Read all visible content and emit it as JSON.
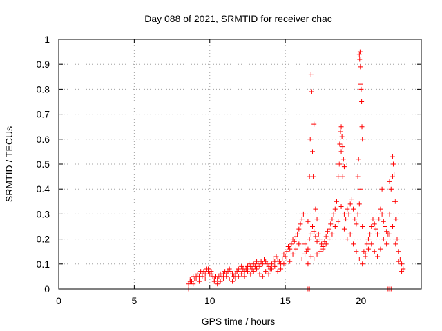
{
  "chart_data": {
    "type": "scatter",
    "title": "Day 088 of 2021, SRMTID for receiver chac",
    "xlabel": "GPS time / hours",
    "ylabel": "SRMTID / TECUs",
    "xlim": [
      0,
      24
    ],
    "ylim": [
      0,
      1
    ],
    "xticks": [
      0,
      5,
      10,
      15,
      20
    ],
    "xtick_labels": [
      "0",
      "5",
      "10",
      "15",
      "20"
    ],
    "yticks": [
      0,
      0.1,
      0.2,
      0.3,
      0.4,
      0.5,
      0.6,
      0.7,
      0.8,
      0.9,
      1
    ],
    "ytick_labels": [
      "0",
      "0.1",
      "0.2",
      "0.3",
      "0.4",
      "0.5",
      "0.6",
      "0.7",
      "0.8",
      "0.9",
      "1"
    ],
    "grid": true,
    "legend": "none",
    "marker": "plus",
    "colors": {
      "series": "#ff0000",
      "grid": "#a0a0a0",
      "axis": "#000000"
    },
    "series": [
      {
        "name": "SRMTID",
        "x": [
          8.6,
          8.7,
          8.8,
          8.9,
          9.0,
          9.1,
          9.2,
          9.3,
          9.4,
          9.5,
          9.6,
          9.7,
          9.8,
          9.9,
          10.0,
          10.1,
          10.2,
          10.3,
          10.4,
          10.5,
          10.6,
          10.7,
          10.8,
          10.9,
          11.0,
          11.1,
          11.2,
          11.3,
          11.4,
          11.5,
          11.6,
          11.7,
          11.8,
          11.9,
          12.0,
          12.1,
          12.2,
          12.3,
          12.4,
          12.5,
          12.6,
          12.7,
          12.8,
          12.9,
          13.0,
          13.1,
          13.2,
          13.3,
          13.4,
          13.5,
          13.6,
          13.7,
          13.8,
          13.9,
          14.0,
          14.1,
          14.2,
          14.3,
          14.4,
          14.5,
          14.6,
          14.7,
          14.8,
          14.9,
          15.0,
          15.1,
          15.2,
          15.3,
          15.4,
          15.5,
          15.6,
          15.7,
          15.8,
          15.9,
          16.0,
          16.1,
          16.2,
          16.3,
          16.4,
          16.5,
          16.6,
          16.7,
          16.8,
          16.9,
          17.0,
          17.1,
          17.2,
          17.3,
          17.4,
          17.5,
          17.6,
          17.7,
          17.8,
          17.9,
          18.0,
          18.1,
          18.2,
          18.3,
          18.4,
          18.5,
          18.6,
          18.7,
          18.8,
          18.9,
          19.0,
          19.1,
          19.2,
          19.3,
          19.4,
          19.5,
          19.6,
          19.7,
          19.8,
          19.9,
          20.0,
          20.1,
          20.2,
          20.3,
          20.4,
          20.5,
          20.6,
          20.7,
          20.8,
          20.9,
          21.0,
          21.1,
          21.2,
          21.3,
          21.4,
          21.5,
          21.6,
          21.7,
          21.8,
          21.9,
          22.0,
          22.1,
          22.2,
          22.3,
          22.4,
          22.5,
          22.6,
          22.7,
          22.8,
          8.7,
          8.9,
          9.1,
          9.3,
          9.5,
          9.7,
          9.9,
          10.1,
          10.3,
          10.5,
          10.7,
          10.9,
          11.1,
          11.3,
          11.5,
          11.7,
          11.9,
          12.1,
          12.3,
          12.5,
          12.7,
          12.9,
          13.1,
          13.3,
          13.5,
          13.7,
          13.9,
          14.1,
          14.3,
          14.5,
          14.7,
          14.9,
          15.1,
          15.3,
          15.5,
          15.7,
          15.9,
          16.1,
          16.3,
          16.5,
          16.7,
          16.9,
          17.1,
          17.3,
          17.5,
          17.7,
          17.9,
          18.1,
          18.3,
          18.5,
          18.7,
          18.9,
          19.1,
          19.3,
          19.5,
          19.7,
          19.9,
          20.1,
          20.3,
          20.5,
          20.7,
          20.9,
          21.1,
          21.3,
          21.5,
          21.7,
          21.9,
          22.1,
          22.3,
          22.5,
          22.7,
          16.5,
          16.6,
          16.65,
          16.7,
          16.75,
          16.8,
          16.85,
          16.9,
          17.0,
          17.1,
          18.5,
          18.6,
          18.65,
          18.7,
          18.75,
          18.8,
          18.85,
          18.9,
          19.9,
          19.92,
          19.95,
          19.97,
          20.0,
          20.02,
          20.05,
          20.07,
          20.1,
          19.8,
          19.85,
          21.4,
          21.6,
          21.9,
          22.1,
          22.15,
          22.2,
          22.3,
          22.35,
          8.6,
          16.5,
          16.6,
          21.8,
          21.9,
          22.0
        ],
        "y": [
          0.02,
          0.04,
          0.03,
          0.05,
          0.04,
          0.05,
          0.06,
          0.05,
          0.07,
          0.06,
          0.07,
          0.06,
          0.08,
          0.07,
          0.06,
          0.07,
          0.05,
          0.04,
          0.05,
          0.04,
          0.05,
          0.06,
          0.05,
          0.06,
          0.07,
          0.06,
          0.07,
          0.08,
          0.07,
          0.06,
          0.05,
          0.06,
          0.07,
          0.08,
          0.07,
          0.09,
          0.08,
          0.07,
          0.08,
          0.09,
          0.1,
          0.09,
          0.08,
          0.1,
          0.09,
          0.11,
          0.1,
          0.09,
          0.11,
          0.1,
          0.12,
          0.11,
          0.1,
          0.09,
          0.08,
          0.1,
          0.12,
          0.11,
          0.13,
          0.12,
          0.11,
          0.1,
          0.12,
          0.14,
          0.13,
          0.15,
          0.17,
          0.16,
          0.18,
          0.2,
          0.19,
          0.21,
          0.22,
          0.24,
          0.26,
          0.28,
          0.3,
          0.18,
          0.15,
          0.16,
          0.2,
          0.22,
          0.25,
          0.23,
          0.21,
          0.19,
          0.22,
          0.2,
          0.18,
          0.17,
          0.19,
          0.21,
          0.23,
          0.24,
          0.26,
          0.28,
          0.3,
          0.32,
          0.35,
          0.45,
          0.5,
          0.55,
          0.45,
          0.3,
          0.28,
          0.32,
          0.3,
          0.34,
          0.36,
          0.32,
          0.28,
          0.26,
          0.3,
          0.34,
          0.4,
          0.25,
          0.15,
          0.13,
          0.18,
          0.2,
          0.22,
          0.25,
          0.28,
          0.26,
          0.24,
          0.22,
          0.28,
          0.32,
          0.3,
          0.27,
          0.25,
          0.23,
          0.22,
          0.3,
          0.4,
          0.45,
          0.35,
          0.28,
          0.2,
          0.15,
          0.12,
          0.1,
          0.08,
          0.03,
          0.02,
          0.04,
          0.03,
          0.05,
          0.04,
          0.08,
          0.06,
          0.03,
          0.02,
          0.03,
          0.04,
          0.05,
          0.04,
          0.03,
          0.04,
          0.05,
          0.06,
          0.05,
          0.07,
          0.06,
          0.07,
          0.08,
          0.06,
          0.05,
          0.07,
          0.06,
          0.08,
          0.09,
          0.07,
          0.08,
          0.1,
          0.12,
          0.11,
          0.14,
          0.16,
          0.18,
          0.12,
          0.14,
          0.1,
          0.13,
          0.12,
          0.14,
          0.15,
          0.16,
          0.18,
          0.2,
          0.22,
          0.25,
          0.27,
          0.33,
          0.24,
          0.2,
          0.22,
          0.18,
          0.15,
          0.12,
          0.1,
          0.14,
          0.16,
          0.18,
          0.15,
          0.13,
          0.16,
          0.2,
          0.18,
          0.22,
          0.25,
          0.18,
          0.11,
          0.07,
          0.27,
          0.45,
          0.6,
          0.86,
          0.79,
          0.55,
          0.45,
          0.66,
          0.32,
          0.28,
          0.5,
          0.58,
          0.63,
          0.65,
          0.61,
          0.57,
          0.52,
          0.49,
          0.94,
          0.92,
          0.95,
          0.89,
          0.82,
          0.8,
          0.75,
          0.65,
          0.6,
          0.45,
          0.52,
          0.4,
          0.38,
          0.43,
          0.53,
          0.5,
          0.46,
          0.35,
          0.28,
          0.0,
          0.0,
          0.0,
          0.0,
          0.0,
          0.0
        ]
      }
    ]
  }
}
